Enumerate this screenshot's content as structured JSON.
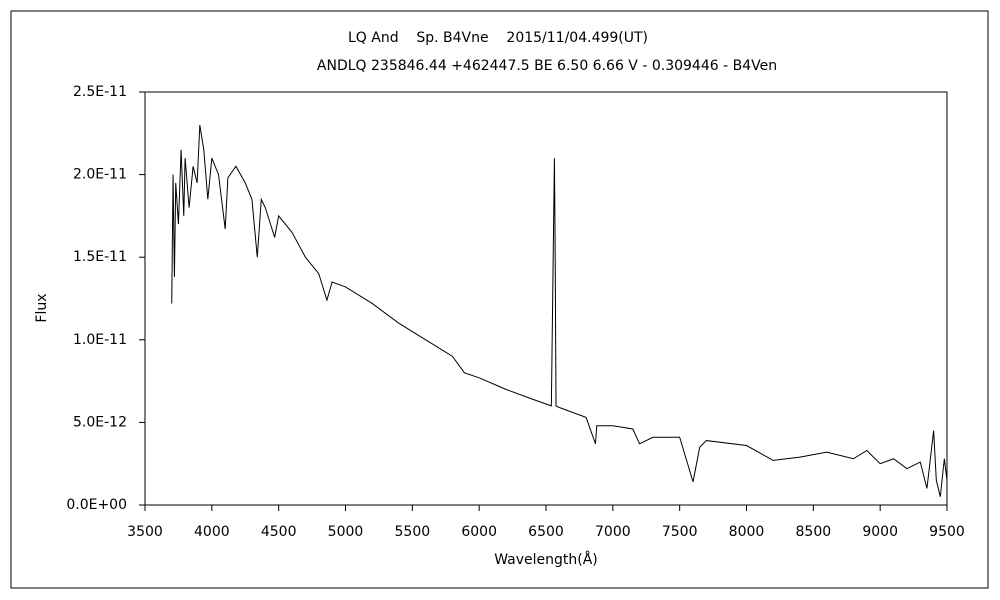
{
  "chart_data": {
    "type": "line",
    "title": "LQ And    Sp. B4Vne    2015/11/04.499(UT)",
    "subtitle": "ANDLQ 235846.44 +462447.5 BE 6.50 6.66 V - 0.309446 - B4Ven",
    "x_label": "Wavelength(Å)",
    "y_label": "Flux",
    "xlim": [
      3500,
      9500
    ],
    "xticks": [
      3500,
      4000,
      4500,
      5000,
      5500,
      6000,
      6500,
      7000,
      7500,
      8000,
      8500,
      9000,
      9500
    ],
    "ylim": [
      0,
      2.5e-11
    ],
    "yticks": [
      {
        "value": 0,
        "label": "0.0E+00"
      },
      {
        "value": 5e-12,
        "label": "5.0E-12"
      },
      {
        "value": 1e-11,
        "label": "1.0E-11"
      },
      {
        "value": 1.5e-11,
        "label": "1.5E-11"
      },
      {
        "value": 2e-11,
        "label": "2.0E-11"
      },
      {
        "value": 2.5e-11,
        "label": "2.5E-11"
      }
    ],
    "color": "#000000",
    "x": [
      3700,
      3710,
      3720,
      3730,
      3750,
      3770,
      3790,
      3800,
      3830,
      3860,
      3890,
      3910,
      3940,
      3970,
      4000,
      4050,
      4100,
      4120,
      4180,
      4250,
      4300,
      4340,
      4370,
      4400,
      4470,
      4500,
      4600,
      4700,
      4800,
      4861,
      4900,
      5000,
      5200,
      5400,
      5600,
      5800,
      5890,
      6000,
      6200,
      6400,
      6540,
      6563,
      6568,
      6575,
      6600,
      6800,
      6870,
      6880,
      7000,
      7150,
      7200,
      7300,
      7500,
      7600,
      7650,
      7700,
      8000,
      8200,
      8400,
      8600,
      8800,
      8900,
      9000,
      9100,
      9200,
      9300,
      9350,
      9400,
      9420,
      9450,
      9480,
      9500
    ],
    "values": [
      1.22e-11,
      2e-11,
      1.38e-11,
      1.95e-11,
      1.7e-11,
      2.15e-11,
      1.75e-11,
      2.1e-11,
      1.8e-11,
      2.05e-11,
      1.95e-11,
      2.3e-11,
      2.15e-11,
      1.85e-11,
      2.1e-11,
      2e-11,
      1.67e-11,
      1.98e-11,
      2.05e-11,
      1.95e-11,
      1.85e-11,
      1.5e-11,
      1.85e-11,
      1.8e-11,
      1.62e-11,
      1.75e-11,
      1.65e-11,
      1.5e-11,
      1.4e-11,
      1.24e-11,
      1.35e-11,
      1.32e-11,
      1.22e-11,
      1.1e-11,
      1e-11,
      9e-12,
      8e-12,
      7.7e-12,
      7e-12,
      6.4e-12,
      6e-12,
      2.1e-11,
      1.6e-11,
      6e-12,
      5.9e-12,
      5.3e-12,
      3.7e-12,
      4.8e-12,
      4.8e-12,
      4.6e-12,
      3.7e-12,
      4.1e-12,
      4.1e-12,
      1.4e-12,
      3.5e-12,
      3.9e-12,
      3.6e-12,
      2.7e-12,
      2.9e-12,
      3.2e-12,
      2.8e-12,
      3.3e-12,
      2.5e-12,
      2.8e-12,
      2.2e-12,
      2.6e-12,
      1e-12,
      4.5e-12,
      1.5e-12,
      5e-13,
      2.8e-12,
      1.5e-12
    ]
  }
}
